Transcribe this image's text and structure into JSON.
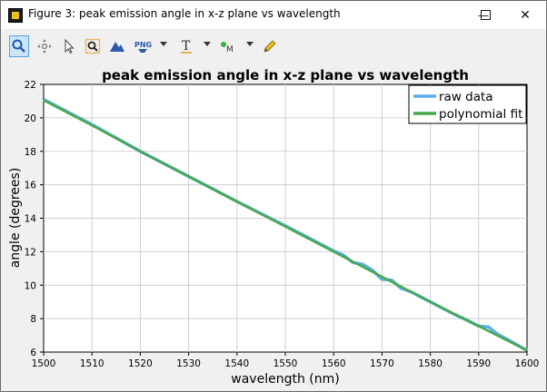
{
  "window": {
    "title": "Figure 3: peak emission angle in x-z plane vs wavelength",
    "minimize_glyph": "—",
    "maximize_glyph": "☐",
    "close_glyph": "✕"
  },
  "toolbar": {
    "tools": [
      {
        "name": "zoom-tool-icon",
        "active": true
      },
      {
        "name": "pan-tool-icon",
        "active": false
      },
      {
        "name": "select-arrow-icon",
        "active": false
      },
      {
        "name": "zoom-box-icon",
        "active": false
      },
      {
        "name": "mountain-icon",
        "active": false
      },
      {
        "name": "png-export-icon",
        "label": "PNG"
      },
      {
        "name": "text-tool-icon",
        "label": "T"
      },
      {
        "name": "marker-tool-icon",
        "label": "M"
      },
      {
        "name": "pencil-icon",
        "active": false
      }
    ]
  },
  "chart_data": {
    "type": "line",
    "title": "peak emission angle in x-z plane vs wavelength",
    "xlabel": "wavelength (nm)",
    "ylabel": "angle (degrees)",
    "xlim": [
      1500,
      1600
    ],
    "ylim": [
      6,
      22
    ],
    "xticks": [
      "1500",
      "1510",
      "1520",
      "1530",
      "1540",
      "1550",
      "1560",
      "1570",
      "1580",
      "1590",
      "1600"
    ],
    "yticks": [
      "6",
      "8",
      "10",
      "12",
      "14",
      "16",
      "18",
      "20",
      "22"
    ],
    "grid": true,
    "legend_position": "top-right",
    "series": [
      {
        "name": "raw data",
        "color": "#5aaee8",
        "x": [
          1500,
          1510,
          1520,
          1530,
          1540,
          1550,
          1555,
          1560,
          1562,
          1564,
          1566,
          1568,
          1570,
          1572,
          1574,
          1576,
          1580,
          1585,
          1588,
          1590,
          1592,
          1594,
          1596,
          1600
        ],
        "y": [
          21.1,
          19.6,
          18.0,
          16.5,
          15.0,
          13.55,
          12.8,
          12.05,
          11.8,
          11.35,
          11.25,
          10.9,
          10.35,
          10.3,
          9.8,
          9.6,
          9.0,
          8.25,
          7.85,
          7.55,
          7.5,
          7.05,
          6.75,
          6.1
        ]
      },
      {
        "name": "polynomial fit",
        "color": "#4aa84a",
        "x": [
          1500,
          1510,
          1520,
          1530,
          1540,
          1550,
          1560,
          1570,
          1580,
          1590,
          1600
        ],
        "y": [
          21.05,
          19.55,
          18.0,
          16.5,
          15.0,
          13.5,
          12.0,
          10.5,
          9.0,
          7.55,
          6.1
        ]
      }
    ]
  }
}
